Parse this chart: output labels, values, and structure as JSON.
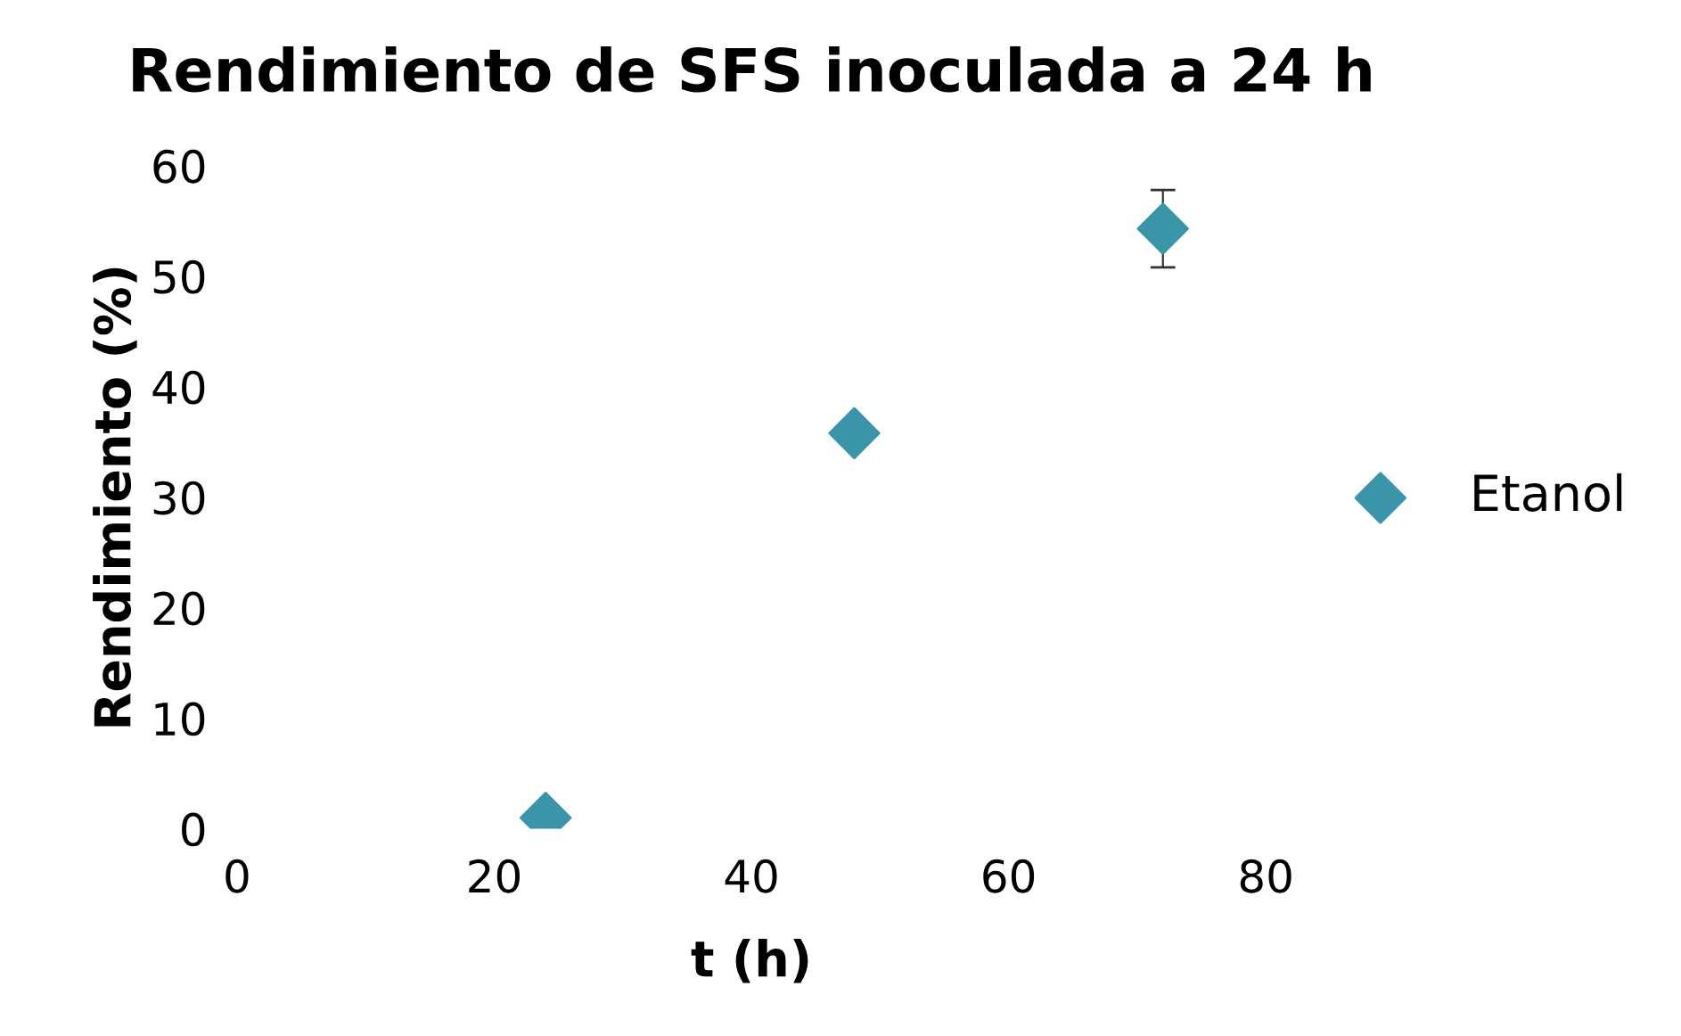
{
  "chart_data": {
    "type": "scatter",
    "title": "Rendimiento de SFS inoculada a 24 h",
    "xlabel": "t (h)",
    "ylabel": "Rendimiento (%)",
    "x": [
      24,
      48,
      72
    ],
    "series": [
      {
        "name": "Etanol",
        "color": "#3a95a8",
        "values": [
          1,
          35.8,
          54.3
        ],
        "errors": [
          null,
          null,
          3.5
        ]
      }
    ],
    "xlim": [
      0,
      80
    ],
    "ylim": [
      0,
      60
    ],
    "xticks": [
      0,
      20,
      40,
      60,
      80
    ],
    "yticks": [
      0,
      10,
      20,
      30,
      40,
      50,
      60
    ],
    "marker": "diamond",
    "grid": false,
    "legend": "right"
  }
}
